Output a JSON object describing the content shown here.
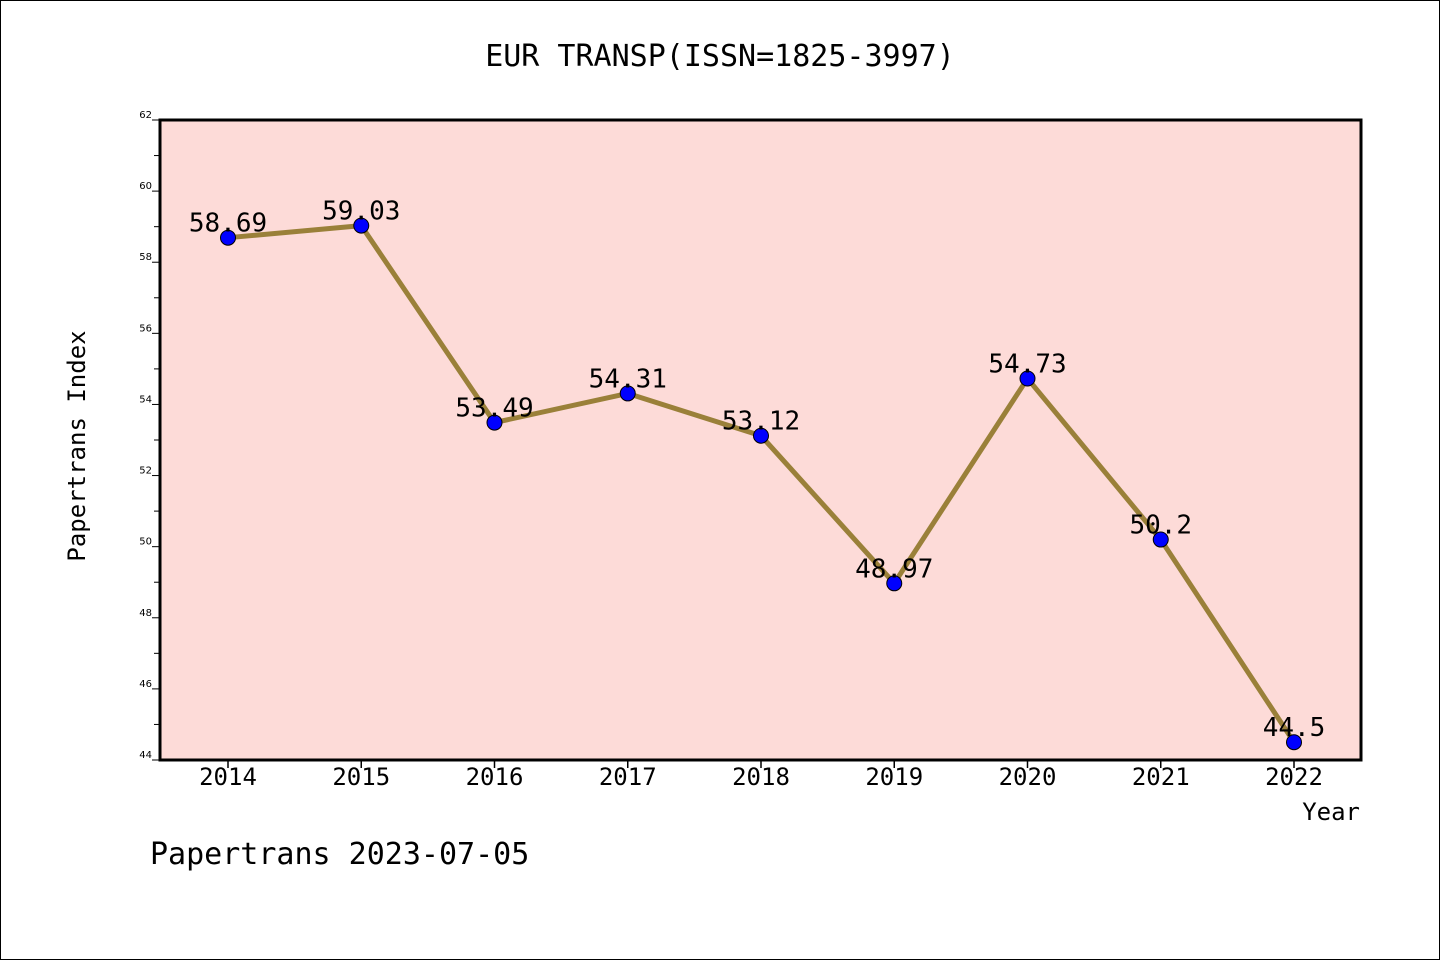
{
  "chart_data": {
    "type": "line",
    "title": "EUR TRANSP(ISSN=1825-3997)",
    "xlabel": "Year",
    "ylabel": "Papertrans Index",
    "categories": [
      "2014",
      "2015",
      "2016",
      "2017",
      "2018",
      "2019",
      "2020",
      "2021",
      "2022"
    ],
    "values": [
      58.69,
      59.03,
      53.49,
      54.31,
      53.12,
      48.97,
      54.73,
      50.2,
      44.5
    ],
    "data_labels": [
      "58.69",
      "59.03",
      "53.49",
      "54.31",
      "53.12",
      "48.97",
      "54.73",
      "50.2",
      "44.5"
    ],
    "ylim": [
      44,
      62
    ],
    "yticks": [
      44,
      46,
      48,
      50,
      52,
      54,
      56,
      58,
      60,
      62
    ],
    "grid": false,
    "line_color": "#9a8039",
    "marker_color": "#0000ff",
    "plot_background": "#fddbd8"
  },
  "footer": {
    "text": "Papertrans 2023-07-05"
  }
}
